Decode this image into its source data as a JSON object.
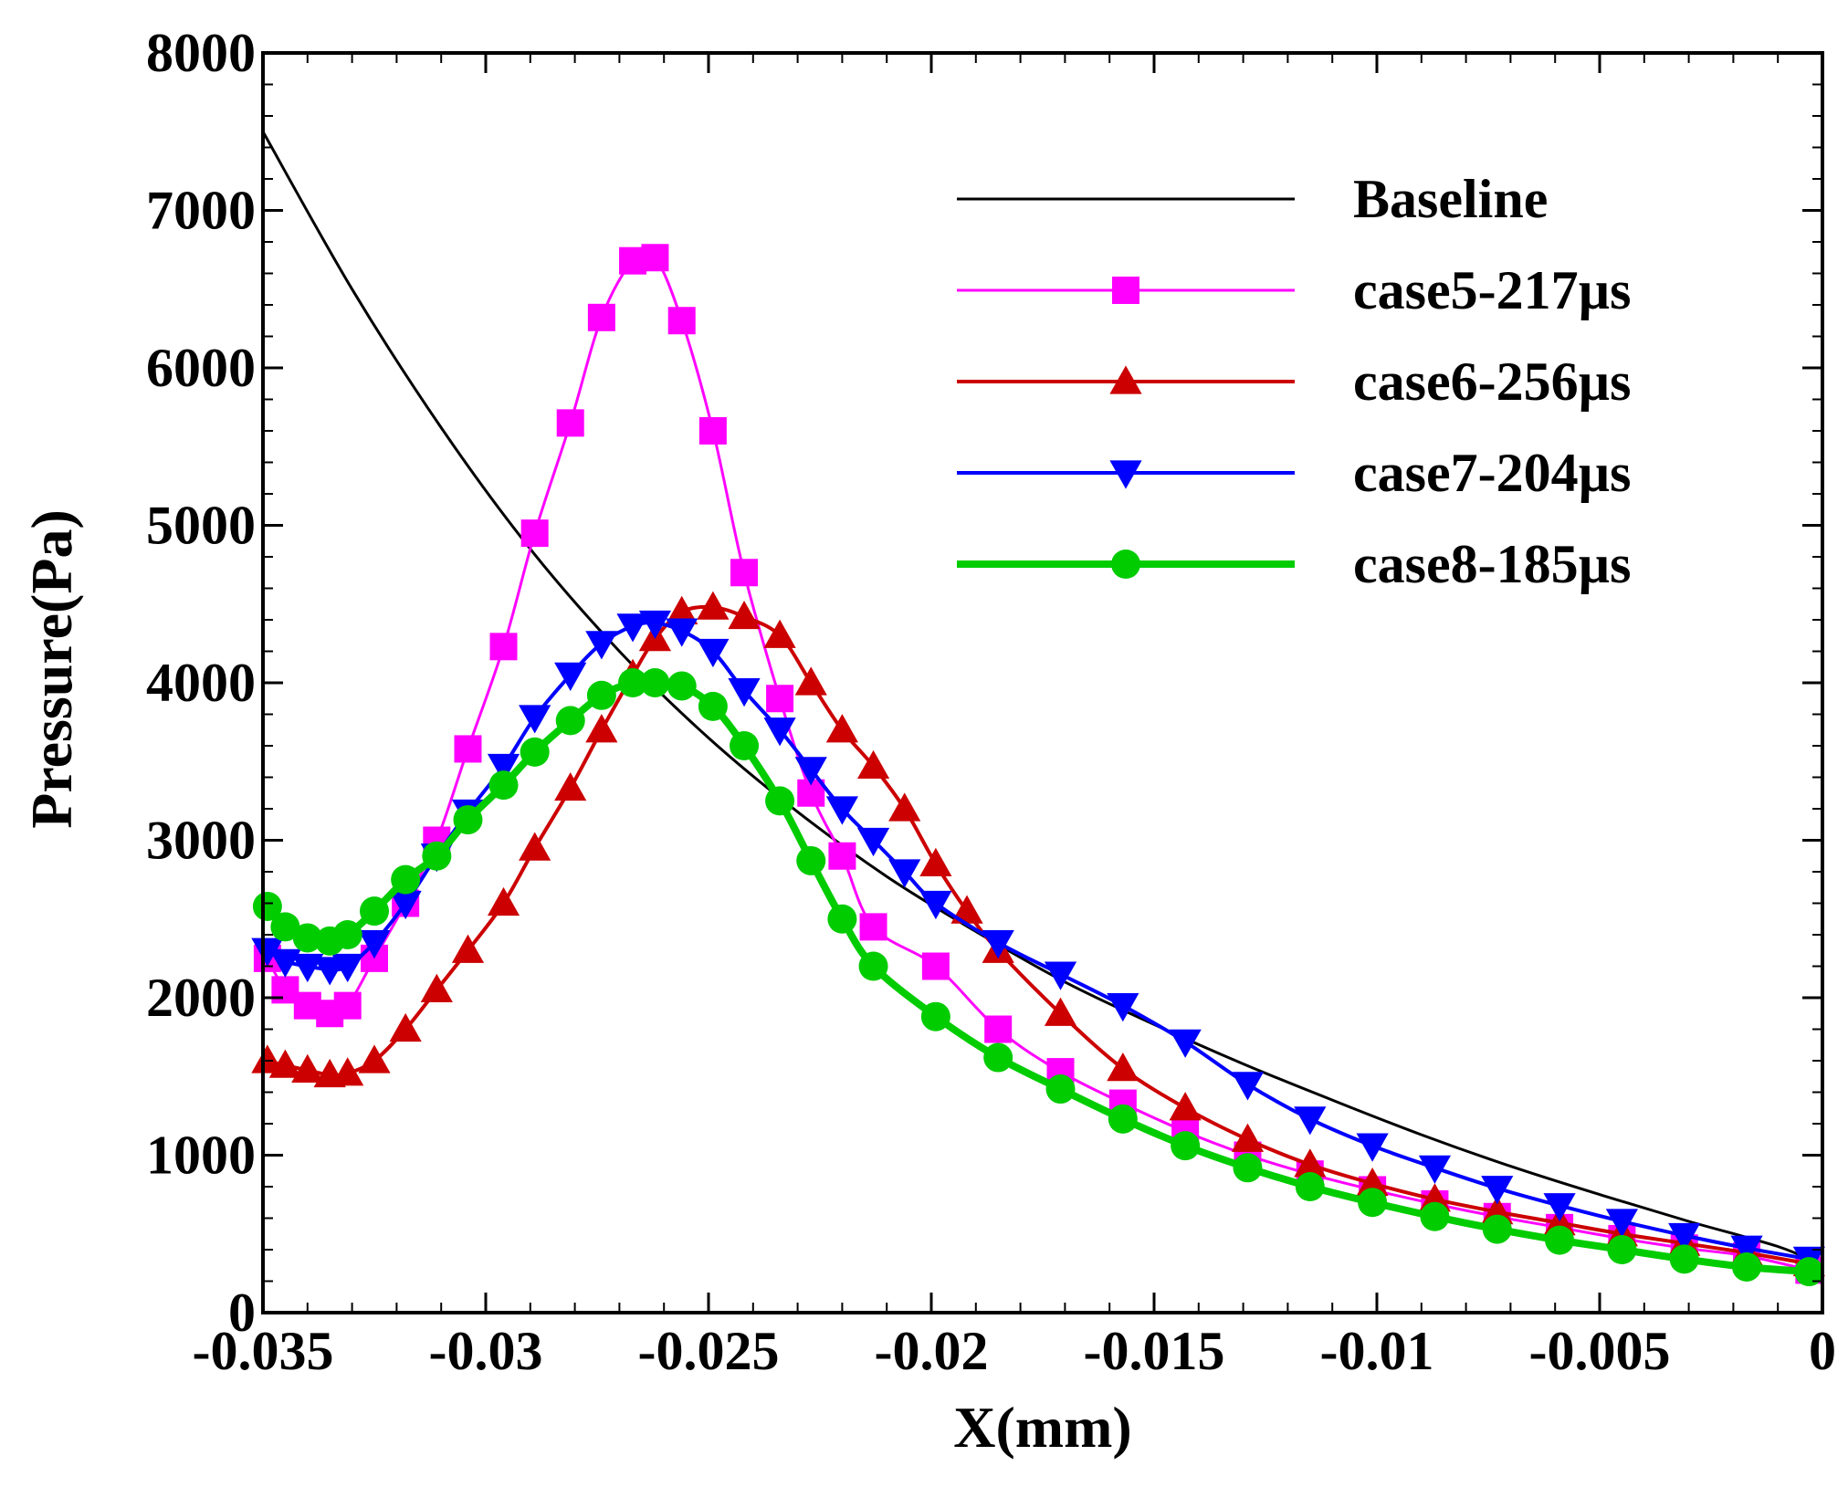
{
  "chart_data": {
    "type": "line",
    "title": "",
    "xlabel": "X(mm)",
    "ylabel": "Pressure(Pa)",
    "xlim": [
      -0.035,
      0
    ],
    "ylim": [
      0,
      8000
    ],
    "x_ticks": [
      -0.035,
      -0.03,
      -0.025,
      -0.02,
      -0.015,
      -0.01,
      -0.005,
      0
    ],
    "x_tick_labels": [
      "-0.035",
      "-0.03",
      "-0.025",
      "-0.02",
      "-0.015",
      "-0.01",
      "-0.005",
      "0"
    ],
    "y_ticks": [
      0,
      1000,
      2000,
      3000,
      4000,
      5000,
      6000,
      7000,
      8000
    ],
    "y_tick_labels": [
      "0",
      "1000",
      "2000",
      "3000",
      "4000",
      "5000",
      "6000",
      "7000",
      "8000"
    ],
    "grid": false,
    "legend_position": "top-right",
    "series": [
      {
        "name": "Baseline",
        "color": "#000000",
        "marker": "none",
        "x": [
          -0.035,
          -0.033,
          -0.031,
          -0.029,
          -0.027,
          -0.025,
          -0.023,
          -0.021,
          -0.019,
          -0.017,
          -0.015,
          -0.013,
          -0.011,
          -0.009,
          -0.007,
          -0.005,
          -0.003,
          -0.001,
          0
        ],
        "y": [
          7500,
          6500,
          5620,
          4850,
          4200,
          3650,
          3180,
          2770,
          2420,
          2100,
          1830,
          1580,
          1350,
          1130,
          930,
          750,
          580,
          420,
          300
        ]
      },
      {
        "name": "case5-217µs",
        "color": "#ff00ff",
        "marker": "square",
        "x": [
          -0.0349,
          -0.0345,
          -0.034,
          -0.0335,
          -0.0331,
          -0.0325,
          -0.0318,
          -0.0311,
          -0.0304,
          -0.0296,
          -0.0289,
          -0.0281,
          -0.0274,
          -0.0267,
          -0.0262,
          -0.0256,
          -0.0249,
          -0.0242,
          -0.0234,
          -0.0227,
          -0.022,
          -0.0213,
          -0.0199,
          -0.0185,
          -0.0171,
          -0.0157,
          -0.0143,
          -0.0129,
          -0.0115,
          -0.0101,
          -0.0087,
          -0.0073,
          -0.0059,
          -0.0045,
          -0.0031,
          -0.0017,
          -0.0003
        ],
        "y": [
          2250,
          2050,
          1950,
          1900,
          1950,
          2250,
          2600,
          3000,
          3580,
          4230,
          4950,
          5650,
          6320,
          6680,
          6700,
          6300,
          5600,
          4700,
          3900,
          3300,
          2900,
          2450,
          2200,
          1800,
          1530,
          1330,
          1150,
          1000,
          880,
          780,
          690,
          610,
          540,
          470,
          410,
          360,
          270
        ]
      },
      {
        "name": "case6-256µs",
        "color": "#cc0000",
        "marker": "triangle-up",
        "x": [
          -0.0349,
          -0.0345,
          -0.034,
          -0.0335,
          -0.0331,
          -0.0325,
          -0.0318,
          -0.0311,
          -0.0304,
          -0.0296,
          -0.0289,
          -0.0281,
          -0.0274,
          -0.0267,
          -0.0262,
          -0.0256,
          -0.0249,
          -0.0242,
          -0.0234,
          -0.0227,
          -0.022,
          -0.0213,
          -0.0206,
          -0.0199,
          -0.0192,
          -0.0185,
          -0.0171,
          -0.0157,
          -0.0143,
          -0.0129,
          -0.0115,
          -0.0101,
          -0.0087,
          -0.0073,
          -0.0059,
          -0.0045,
          -0.0031,
          -0.0017,
          -0.0003
        ],
        "y": [
          1600,
          1570,
          1540,
          1510,
          1520,
          1600,
          1800,
          2050,
          2300,
          2600,
          2950,
          3330,
          3700,
          4050,
          4280,
          4450,
          4480,
          4420,
          4300,
          4000,
          3700,
          3470,
          3200,
          2850,
          2550,
          2300,
          1900,
          1550,
          1300,
          1100,
          940,
          820,
          720,
          640,
          570,
          500,
          440,
          380,
          310
        ]
      },
      {
        "name": "case7-204µs",
        "color": "#0000ff",
        "marker": "triangle-down",
        "x": [
          -0.0349,
          -0.0345,
          -0.034,
          -0.0335,
          -0.0331,
          -0.0325,
          -0.0318,
          -0.0311,
          -0.0304,
          -0.0296,
          -0.0289,
          -0.0281,
          -0.0274,
          -0.0267,
          -0.0262,
          -0.0256,
          -0.0249,
          -0.0242,
          -0.0234,
          -0.0227,
          -0.022,
          -0.0213,
          -0.0206,
          -0.0199,
          -0.0185,
          -0.0171,
          -0.0157,
          -0.0143,
          -0.0129,
          -0.0115,
          -0.0101,
          -0.0087,
          -0.0073,
          -0.0059,
          -0.0045,
          -0.0031,
          -0.0017,
          -0.0003
        ],
        "y": [
          2300,
          2230,
          2200,
          2180,
          2200,
          2350,
          2600,
          2900,
          3180,
          3470,
          3780,
          4050,
          4250,
          4360,
          4380,
          4330,
          4200,
          3950,
          3700,
          3450,
          3200,
          3000,
          2800,
          2600,
          2350,
          2150,
          1950,
          1720,
          1450,
          1230,
          1060,
          920,
          790,
          680,
          580,
          490,
          410,
          340
        ]
      },
      {
        "name": "case8-185µs",
        "color": "#00cc00",
        "marker": "circle",
        "x": [
          -0.0349,
          -0.0345,
          -0.034,
          -0.0335,
          -0.0331,
          -0.0325,
          -0.0318,
          -0.0311,
          -0.0304,
          -0.0296,
          -0.0289,
          -0.0281,
          -0.0274,
          -0.0267,
          -0.0262,
          -0.0256,
          -0.0249,
          -0.0242,
          -0.0234,
          -0.0227,
          -0.022,
          -0.0213,
          -0.0199,
          -0.0185,
          -0.0171,
          -0.0157,
          -0.0143,
          -0.0129,
          -0.0115,
          -0.0101,
          -0.0087,
          -0.0073,
          -0.0059,
          -0.0045,
          -0.0031,
          -0.0017,
          -0.0003
        ],
        "y": [
          2580,
          2450,
          2380,
          2360,
          2400,
          2550,
          2750,
          2900,
          3130,
          3350,
          3560,
          3760,
          3920,
          4000,
          4000,
          3980,
          3850,
          3600,
          3250,
          2870,
          2500,
          2200,
          1880,
          1620,
          1420,
          1230,
          1060,
          920,
          800,
          700,
          610,
          530,
          460,
          400,
          340,
          290,
          260
        ]
      }
    ]
  }
}
